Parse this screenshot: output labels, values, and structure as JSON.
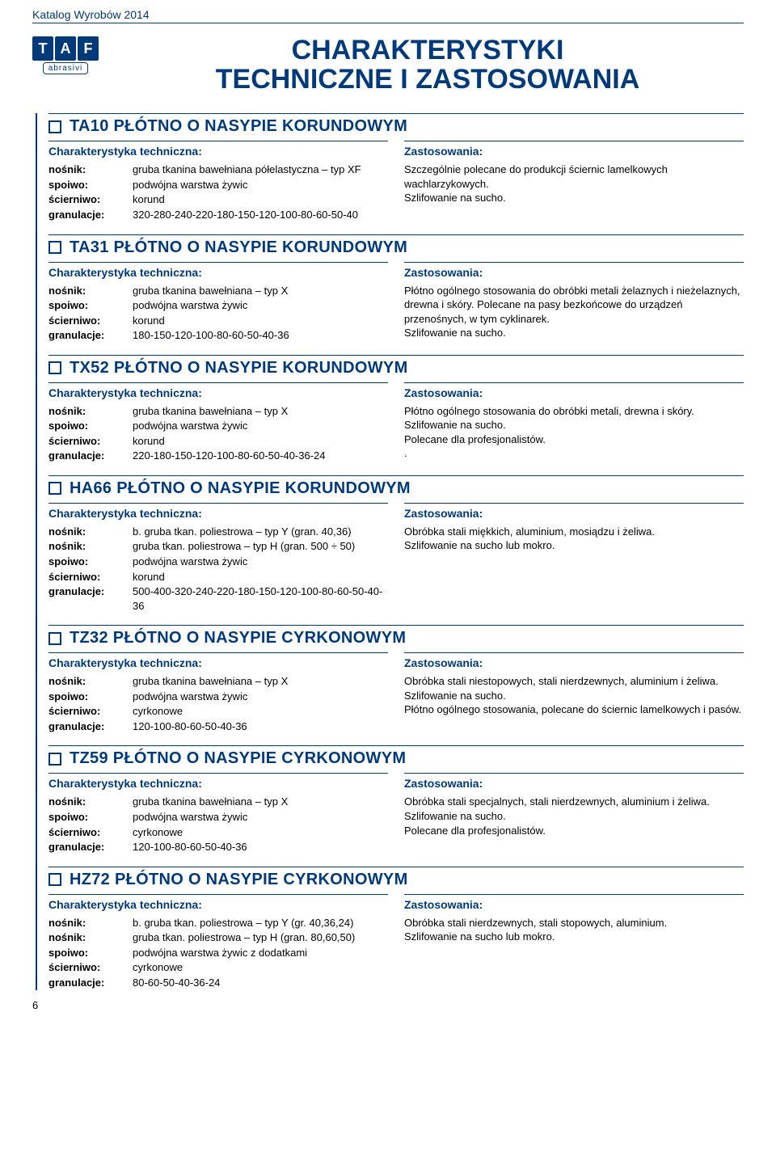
{
  "catalog_header": "Katalog Wyrobów 2014",
  "logo": {
    "t": "T",
    "a": "A",
    "f": "F",
    "sub": "abrasivi"
  },
  "main_title_line1": "CHARAKTERYSTYKI",
  "main_title_line2": "TECHNICZNE I ZASTOSOWANIA",
  "labels": {
    "tech_head": "Charakterystyka techniczna:",
    "app_head": "Zastosowania:",
    "nosnik": "nośnik:",
    "spoiwo": "spoiwo:",
    "scierniwo": "ścierniwo:",
    "granulacje": "granulacje:"
  },
  "page_number": "6",
  "sections": [
    {
      "title": "TA10 PŁÓTNO O NASYPIE KORUNDOWYM",
      "specs": [
        {
          "k": "nosnik",
          "v": "gruba tkanina bawełniana półelastyczna – typ XF"
        },
        {
          "k": "spoiwo",
          "v": "podwójna warstwa żywic"
        },
        {
          "k": "scierniwo",
          "v": "korund"
        },
        {
          "k": "granulacje",
          "v": "320-280-240-220-180-150-120-100-80-60-50-40"
        }
      ],
      "app": "Szczególnie polecane do produkcji ściernic lamelkowych wachlarzykowych.\nSzlifowanie na sucho."
    },
    {
      "title": "TA31 PŁÓTNO O NASYPIE KORUNDOWYM",
      "specs": [
        {
          "k": "nosnik",
          "v": "gruba tkanina bawełniana – typ X"
        },
        {
          "k": "spoiwo",
          "v": "podwójna warstwa żywic"
        },
        {
          "k": "scierniwo",
          "v": "korund"
        },
        {
          "k": "granulacje",
          "v": "180-150-120-100-80-60-50-40-36"
        }
      ],
      "app": "Płótno ogólnego stosowania do obróbki metali żelaznych i nieżelaznych, drewna i skóry. Polecane na pasy bezkońcowe do urządzeń przenośnych, w tym cyklinarek.\nSzlifowanie na sucho."
    },
    {
      "title": "TX52 PŁÓTNO O NASYPIE KORUNDOWYM",
      "specs": [
        {
          "k": "nosnik",
          "v": "gruba tkanina bawełniana – typ X"
        },
        {
          "k": "spoiwo",
          "v": "podwójna warstwa żywic"
        },
        {
          "k": "scierniwo",
          "v": "korund"
        },
        {
          "k": "granulacje",
          "v": "220-180-150-120-100-80-60-50-40-36-24"
        }
      ],
      "app": "Płótno ogólnego stosowania do obróbki metali, drewna i skóry.\nSzlifowanie na sucho.\nPolecane dla profesjonalistów.\n."
    },
    {
      "title": "HA66 PŁÓTNO O NASYPIE KORUNDOWYM",
      "specs": [
        {
          "k": "nosnik",
          "v": "b. gruba tkan. poliestrowa  – typ Y (gran. 40,36)"
        },
        {
          "k": "nosnik",
          "v": "gruba tkan. poliestrowa – typ H (gran. 500 ÷ 50)"
        },
        {
          "k": "spoiwo",
          "v": "podwójna warstwa żywic"
        },
        {
          "k": "scierniwo",
          "v": "korund"
        },
        {
          "k": "granulacje",
          "v": "500-400-320-240-220-180-150-120-100-80-60-50-40-36"
        }
      ],
      "app": "Obróbka stali miękkich, aluminium, mosiądzu i żeliwa.\nSzlifowanie na sucho lub mokro."
    },
    {
      "title": "TZ32 PŁÓTNO O NASYPIE CYRKONOWYM",
      "specs": [
        {
          "k": "nosnik",
          "v": "gruba tkanina bawełniana – typ X"
        },
        {
          "k": "spoiwo",
          "v": "podwójna warstwa żywic"
        },
        {
          "k": "scierniwo",
          "v": "cyrkonowe"
        },
        {
          "k": "granulacje",
          "v": "120-100-80-60-50-40-36"
        }
      ],
      "app": "Obróbka stali niestopowych, stali nierdzewnych, aluminium i żeliwa.\nSzlifowanie na sucho.\nPłótno ogólnego stosowania, polecane do ściernic lamelkowych i pasów."
    },
    {
      "title": "TZ59 PŁÓTNO O NASYPIE CYRKONOWYM",
      "specs": [
        {
          "k": "nosnik",
          "v": "gruba tkanina bawełniana – typ X"
        },
        {
          "k": "spoiwo",
          "v": "podwójna warstwa żywic"
        },
        {
          "k": "scierniwo",
          "v": "cyrkonowe"
        },
        {
          "k": "granulacje",
          "v": "120-100-80-60-50-40-36"
        }
      ],
      "app": "Obróbka stali specjalnych, stali nierdzewnych, aluminium i żeliwa.\nSzlifowanie na sucho.\nPolecane dla profesjonalistów."
    },
    {
      "title": "HZ72 PŁÓTNO O NASYPIE CYRKONOWYM",
      "specs": [
        {
          "k": "nosnik",
          "v": "b.  gruba tkan. poliestrowa – typ Y (gr. 40,36,24)"
        },
        {
          "k": "nosnik",
          "v": "gruba tkan. poliestrowa – typ H  (gran. 80,60,50)"
        },
        {
          "k": "spoiwo",
          "v": "podwójna warstwa żywic z dodatkami"
        },
        {
          "k": "scierniwo",
          "v": "cyrkonowe"
        },
        {
          "k": "granulacje",
          "v": "80-60-50-40-36-24"
        }
      ],
      "app": "Obróbka stali nierdzewnych, stali stopowych, aluminium.\nSzlifowanie na sucho lub mokro."
    }
  ]
}
